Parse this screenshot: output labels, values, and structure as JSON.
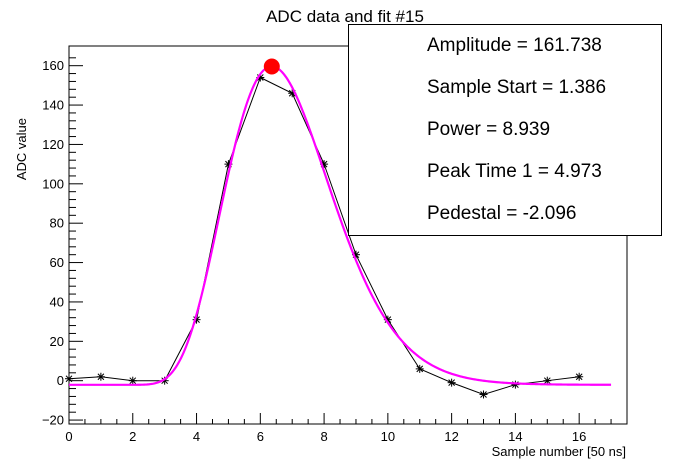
{
  "chart_data": {
    "type": "scatter",
    "title": "ADC data and fit #15",
    "xlabel": "Sample number [50 ns]",
    "ylabel": "ADC value",
    "xlim": [
      0,
      17.5
    ],
    "ylim": [
      -22,
      170
    ],
    "x_ticks": [
      0,
      2,
      4,
      6,
      8,
      10,
      12,
      14,
      16
    ],
    "y_ticks": [
      -20,
      0,
      20,
      40,
      60,
      80,
      100,
      120,
      140,
      160
    ],
    "series": [
      {
        "style": "black line with star markers",
        "color": "#000000",
        "x": [
          0,
          1,
          2,
          3,
          4,
          5,
          6,
          7,
          8,
          9,
          10,
          11,
          12,
          13,
          14,
          15,
          16
        ],
        "y": [
          1,
          2,
          0,
          0,
          31,
          110,
          154,
          146,
          110,
          64,
          31,
          6,
          -1,
          -7,
          -2,
          0,
          2
        ]
      },
      {
        "style": "magenta fit curve",
        "color": "#ff00ff",
        "fit": {
          "amplitude": 161.738,
          "sample_start": 1.386,
          "power": 8.939,
          "peak_time_1": 4.973,
          "pedestal": -2.096
        },
        "x_range": [
          0,
          17
        ]
      },
      {
        "style": "red peak marker",
        "color": "#ff0000",
        "x": [
          6.36
        ],
        "y": [
          159.6
        ]
      }
    ],
    "grid": false,
    "legend": "none"
  },
  "stats_box": {
    "lines": [
      "Amplitude = 161.738",
      "Sample Start = 1.386",
      "Power = 8.939",
      "Peak Time 1 = 4.973",
      "Pedestal = -2.096"
    ]
  }
}
